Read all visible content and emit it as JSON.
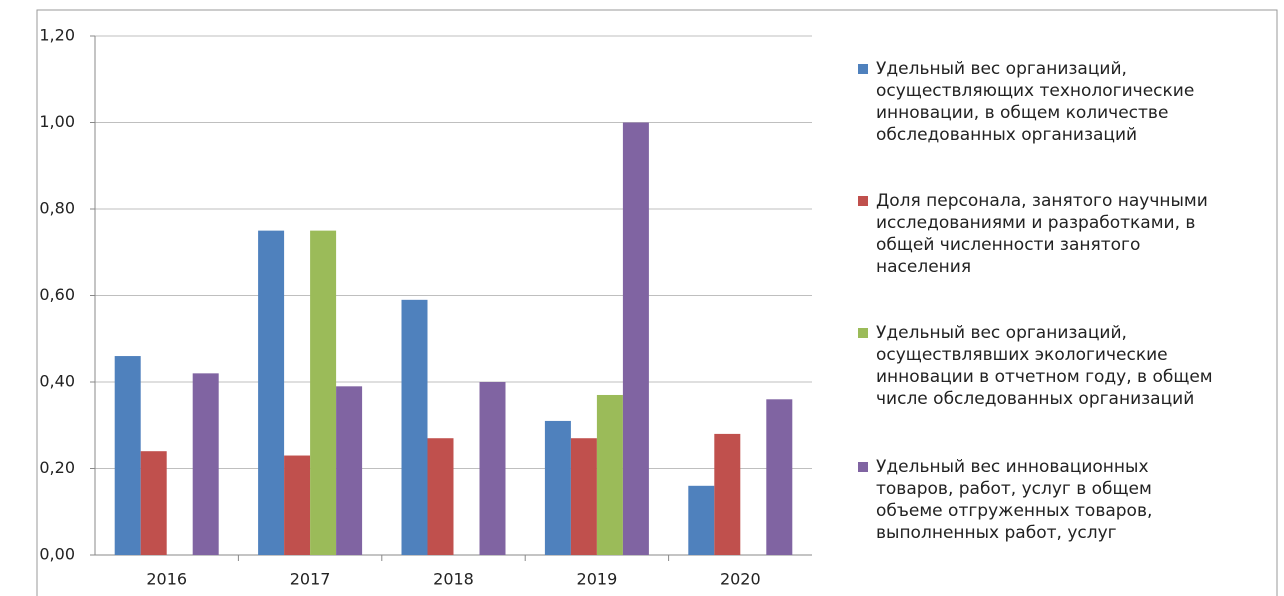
{
  "chart_data": {
    "type": "bar",
    "categories": [
      "2016",
      "2017",
      "2018",
      "2019",
      "2020"
    ],
    "series": [
      {
        "name": "Удельный вес организаций, осуществляющих технологические инновации, в общем количестве обследованных организаций",
        "color": "#4f81bd",
        "values": [
          0.46,
          0.75,
          0.59,
          0.31,
          0.16
        ]
      },
      {
        "name": "Доля персонала, занятого научными исследованиями и разработками, в общей численности занятого населения",
        "color": "#c0504d",
        "values": [
          0.24,
          0.23,
          0.27,
          0.27,
          0.28
        ]
      },
      {
        "name": "Удельный вес организаций, осуществлявших экологические инновации в отчетном году, в общем числе обследованных организаций",
        "color": "#9bbb59",
        "values": [
          null,
          0.75,
          null,
          0.37,
          null
        ]
      },
      {
        "name": "Удельный вес инновационных товаров, работ, услуг в общем объеме отгруженных товаров, выполненных работ, услуг",
        "color": "#8064a2",
        "values": [
          0.42,
          0.39,
          0.4,
          1.0,
          0.36
        ]
      }
    ],
    "ylim": [
      0,
      1.2
    ],
    "yticks": [
      {
        "value": 0,
        "label": "0,00"
      },
      {
        "value": 0.2,
        "label": "0,20"
      },
      {
        "value": 0.4,
        "label": "0,40"
      },
      {
        "value": 0.6,
        "label": "0,60"
      },
      {
        "value": 0.8,
        "label": "0,80"
      },
      {
        "value": 1.0,
        "label": "1,00"
      },
      {
        "value": 1.2,
        "label": "1,20"
      }
    ],
    "grid": true,
    "legend": "right"
  }
}
